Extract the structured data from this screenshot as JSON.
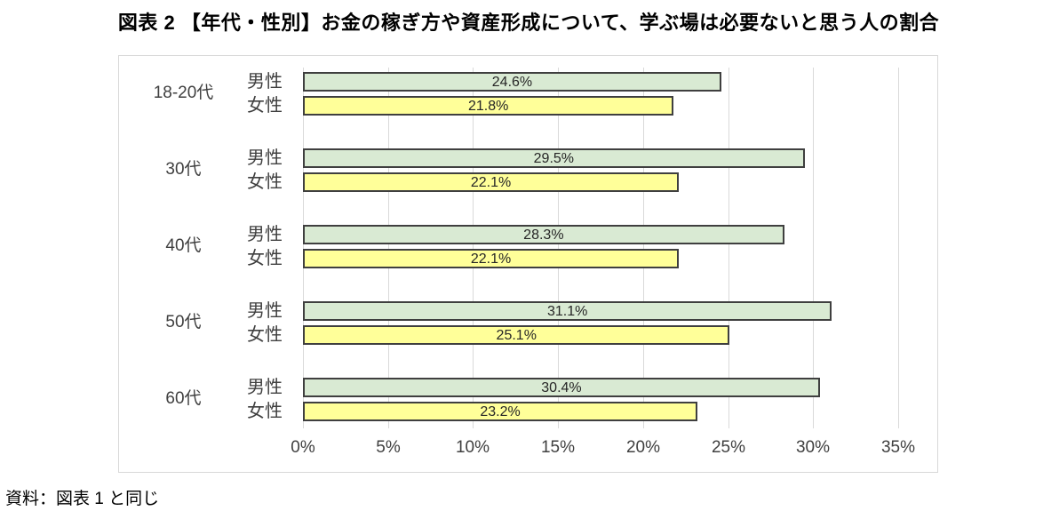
{
  "title": "図表 2 【年代・性別】お金の稼ぎ方や資産形成について、学ぶ場は必要ないと思う人の割合",
  "source_note": "資料：図表 1 と同じ",
  "chart_data": {
    "type": "bar",
    "orientation": "horizontal",
    "title": "図表 2 【年代・性別】お金の稼ぎ方や資産形成について、学ぶ場は必要ないと思う人の割合",
    "categories": [
      "18-20代",
      "30代",
      "40代",
      "50代",
      "60代"
    ],
    "series": [
      {
        "name": "男性",
        "values": [
          24.6,
          29.5,
          28.3,
          31.1,
          30.4
        ],
        "fill": "#d9ead3",
        "border": "#3f3f3f"
      },
      {
        "name": "女性",
        "values": [
          21.8,
          22.1,
          22.1,
          25.1,
          23.2
        ],
        "fill": "#ffff99",
        "border": "#3f3f3f"
      }
    ],
    "value_suffix": "%",
    "data_labels": "center",
    "xlim": [
      0,
      35
    ],
    "x_ticks": [
      "0%",
      "5%",
      "10%",
      "15%",
      "20%",
      "25%",
      "30%",
      "35%"
    ],
    "grid": true,
    "gridline_color": "#d9d9d9",
    "legend_position": "none"
  }
}
